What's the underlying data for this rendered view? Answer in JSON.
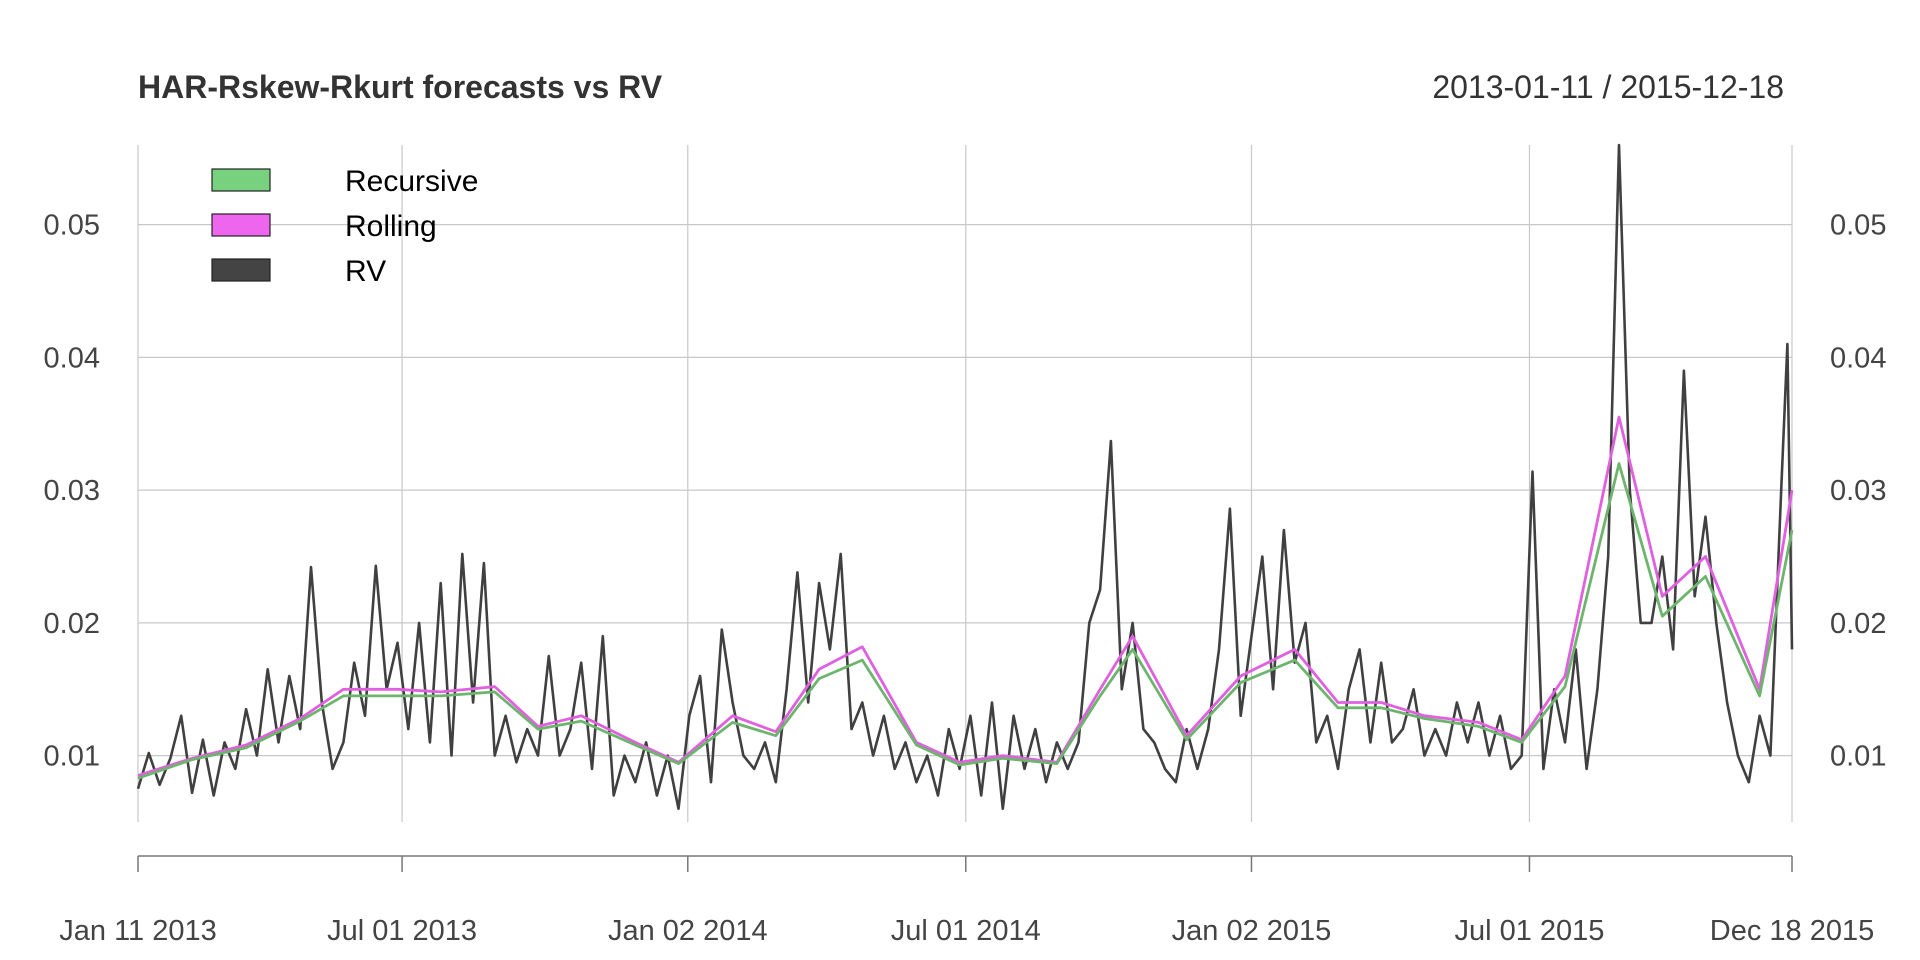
{
  "chart_data": {
    "type": "line",
    "title": "HAR-Rskew-Rkurt forecasts vs RV",
    "date_range": "2013-01-11 / 2015-12-18",
    "x_range": [
      "2013-01-11",
      "2015-12-18"
    ],
    "ylim": [
      0.005,
      0.056
    ],
    "y_ticks": [
      0.01,
      0.02,
      0.03,
      0.04,
      0.05
    ],
    "y_tick_labels": [
      "0.01",
      "0.02",
      "0.03",
      "0.04",
      "0.05"
    ],
    "x_ticks": [
      {
        "date": "2013-01-11",
        "label": "Jan 11 2013"
      },
      {
        "date": "2013-07-01",
        "label": "Jul 01 2013"
      },
      {
        "date": "2014-01-02",
        "label": "Jan 02 2014"
      },
      {
        "date": "2014-07-01",
        "label": "Jul 01 2014"
      },
      {
        "date": "2015-01-02",
        "label": "Jan 02 2015"
      },
      {
        "date": "2015-07-01",
        "label": "Jul 01 2015"
      },
      {
        "date": "2015-12-18",
        "label": "Dec 18 2015"
      }
    ],
    "grid": true,
    "legend": {
      "position": "top-left",
      "entries": [
        {
          "name": "Recursive",
          "color": "#77d17f"
        },
        {
          "name": "Rolling",
          "color": "#ee66ee"
        },
        {
          "name": "RV",
          "color": "#444444"
        }
      ]
    },
    "series": [
      {
        "name": "RV",
        "color": "#404040",
        "points": [
          [
            "2013-01-11",
            0.0075
          ],
          [
            "2013-01-18",
            0.0102
          ],
          [
            "2013-01-25",
            0.0078
          ],
          [
            "2013-02-01",
            0.0098
          ],
          [
            "2013-02-08",
            0.013
          ],
          [
            "2013-02-15",
            0.0072
          ],
          [
            "2013-02-22",
            0.0112
          ],
          [
            "2013-03-01",
            0.007
          ],
          [
            "2013-03-08",
            0.011
          ],
          [
            "2013-03-15",
            0.009
          ],
          [
            "2013-03-22",
            0.0135
          ],
          [
            "2013-03-29",
            0.01
          ],
          [
            "2013-04-05",
            0.0165
          ],
          [
            "2013-04-12",
            0.011
          ],
          [
            "2013-04-19",
            0.016
          ],
          [
            "2013-04-26",
            0.012
          ],
          [
            "2013-05-03",
            0.0242
          ],
          [
            "2013-05-10",
            0.014
          ],
          [
            "2013-05-17",
            0.009
          ],
          [
            "2013-05-24",
            0.011
          ],
          [
            "2013-05-31",
            0.017
          ],
          [
            "2013-06-07",
            0.013
          ],
          [
            "2013-06-14",
            0.0243
          ],
          [
            "2013-06-21",
            0.015
          ],
          [
            "2013-06-28",
            0.0185
          ],
          [
            "2013-07-05",
            0.012
          ],
          [
            "2013-07-12",
            0.02
          ],
          [
            "2013-07-19",
            0.011
          ],
          [
            "2013-07-26",
            0.023
          ],
          [
            "2013-08-02",
            0.01
          ],
          [
            "2013-08-09",
            0.0252
          ],
          [
            "2013-08-16",
            0.014
          ],
          [
            "2013-08-23",
            0.0245
          ],
          [
            "2013-08-30",
            0.01
          ],
          [
            "2013-09-06",
            0.013
          ],
          [
            "2013-09-13",
            0.0095
          ],
          [
            "2013-09-20",
            0.012
          ],
          [
            "2013-09-27",
            0.01
          ],
          [
            "2013-10-04",
            0.0175
          ],
          [
            "2013-10-11",
            0.01
          ],
          [
            "2013-10-18",
            0.012
          ],
          [
            "2013-10-25",
            0.017
          ],
          [
            "2013-11-01",
            0.009
          ],
          [
            "2013-11-08",
            0.019
          ],
          [
            "2013-11-15",
            0.007
          ],
          [
            "2013-11-22",
            0.01
          ],
          [
            "2013-11-29",
            0.008
          ],
          [
            "2013-12-06",
            0.011
          ],
          [
            "2013-12-13",
            0.007
          ],
          [
            "2013-12-20",
            0.01
          ],
          [
            "2013-12-27",
            0.006
          ],
          [
            "2014-01-03",
            0.013
          ],
          [
            "2014-01-10",
            0.016
          ],
          [
            "2014-01-17",
            0.008
          ],
          [
            "2014-01-24",
            0.0195
          ],
          [
            "2014-01-31",
            0.014
          ],
          [
            "2014-02-07",
            0.01
          ],
          [
            "2014-02-14",
            0.009
          ],
          [
            "2014-02-21",
            0.011
          ],
          [
            "2014-02-28",
            0.008
          ],
          [
            "2014-03-07",
            0.015
          ],
          [
            "2014-03-14",
            0.0238
          ],
          [
            "2014-03-21",
            0.014
          ],
          [
            "2014-03-28",
            0.023
          ],
          [
            "2014-04-04",
            0.018
          ],
          [
            "2014-04-11",
            0.0252
          ],
          [
            "2014-04-18",
            0.012
          ],
          [
            "2014-04-25",
            0.014
          ],
          [
            "2014-05-02",
            0.01
          ],
          [
            "2014-05-09",
            0.013
          ],
          [
            "2014-05-16",
            0.009
          ],
          [
            "2014-05-23",
            0.011
          ],
          [
            "2014-05-30",
            0.008
          ],
          [
            "2014-06-06",
            0.01
          ],
          [
            "2014-06-13",
            0.007
          ],
          [
            "2014-06-20",
            0.012
          ],
          [
            "2014-06-27",
            0.009
          ],
          [
            "2014-07-04",
            0.013
          ],
          [
            "2014-07-11",
            0.007
          ],
          [
            "2014-07-18",
            0.014
          ],
          [
            "2014-07-25",
            0.006
          ],
          [
            "2014-08-01",
            0.013
          ],
          [
            "2014-08-08",
            0.009
          ],
          [
            "2014-08-15",
            0.012
          ],
          [
            "2014-08-22",
            0.008
          ],
          [
            "2014-08-29",
            0.011
          ],
          [
            "2014-09-05",
            0.009
          ],
          [
            "2014-09-12",
            0.011
          ],
          [
            "2014-09-19",
            0.02
          ],
          [
            "2014-09-26",
            0.0225
          ],
          [
            "2014-10-03",
            0.0337
          ],
          [
            "2014-10-10",
            0.015
          ],
          [
            "2014-10-17",
            0.02
          ],
          [
            "2014-10-24",
            0.012
          ],
          [
            "2014-10-31",
            0.011
          ],
          [
            "2014-11-07",
            0.009
          ],
          [
            "2014-11-14",
            0.008
          ],
          [
            "2014-11-21",
            0.012
          ],
          [
            "2014-11-28",
            0.009
          ],
          [
            "2014-12-05",
            0.012
          ],
          [
            "2014-12-12",
            0.018
          ],
          [
            "2014-12-19",
            0.0286
          ],
          [
            "2014-12-26",
            0.013
          ],
          [
            "2015-01-02",
            0.019
          ],
          [
            "2015-01-09",
            0.025
          ],
          [
            "2015-01-16",
            0.015
          ],
          [
            "2015-01-23",
            0.027
          ],
          [
            "2015-01-30",
            0.017
          ],
          [
            "2015-02-06",
            0.02
          ],
          [
            "2015-02-13",
            0.011
          ],
          [
            "2015-02-20",
            0.013
          ],
          [
            "2015-02-27",
            0.009
          ],
          [
            "2015-03-06",
            0.015
          ],
          [
            "2015-03-13",
            0.018
          ],
          [
            "2015-03-20",
            0.011
          ],
          [
            "2015-03-27",
            0.017
          ],
          [
            "2015-04-03",
            0.011
          ],
          [
            "2015-04-10",
            0.012
          ],
          [
            "2015-04-17",
            0.015
          ],
          [
            "2015-04-24",
            0.01
          ],
          [
            "2015-05-01",
            0.012
          ],
          [
            "2015-05-08",
            0.01
          ],
          [
            "2015-05-15",
            0.014
          ],
          [
            "2015-05-22",
            0.011
          ],
          [
            "2015-05-29",
            0.014
          ],
          [
            "2015-06-05",
            0.01
          ],
          [
            "2015-06-12",
            0.013
          ],
          [
            "2015-06-19",
            0.009
          ],
          [
            "2015-06-26",
            0.01
          ],
          [
            "2015-07-03",
            0.0314
          ],
          [
            "2015-07-10",
            0.009
          ],
          [
            "2015-07-17",
            0.015
          ],
          [
            "2015-07-24",
            0.011
          ],
          [
            "2015-07-31",
            0.018
          ],
          [
            "2015-08-07",
            0.009
          ],
          [
            "2015-08-14",
            0.015
          ],
          [
            "2015-08-21",
            0.025
          ],
          [
            "2015-08-28",
            0.056
          ],
          [
            "2015-09-04",
            0.03
          ],
          [
            "2015-09-11",
            0.02
          ],
          [
            "2015-09-18",
            0.02
          ],
          [
            "2015-09-25",
            0.025
          ],
          [
            "2015-10-02",
            0.018
          ],
          [
            "2015-10-09",
            0.039
          ],
          [
            "2015-10-16",
            0.022
          ],
          [
            "2015-10-23",
            0.028
          ],
          [
            "2015-10-30",
            0.02
          ],
          [
            "2015-11-06",
            0.014
          ],
          [
            "2015-11-13",
            0.01
          ],
          [
            "2015-11-20",
            0.008
          ],
          [
            "2015-11-27",
            0.013
          ],
          [
            "2015-12-04",
            0.01
          ],
          [
            "2015-12-11",
            0.03
          ],
          [
            "2015-12-15",
            0.041
          ],
          [
            "2015-12-18",
            0.018
          ]
        ]
      },
      {
        "name": "Rolling",
        "color": "#e060e0",
        "points": [
          [
            "2013-01-11",
            0.0085
          ],
          [
            "2013-02-15",
            0.0098
          ],
          [
            "2013-03-22",
            0.0108
          ],
          [
            "2013-04-26",
            0.0128
          ],
          [
            "2013-05-24",
            0.015
          ],
          [
            "2013-06-28",
            0.015
          ],
          [
            "2013-07-26",
            0.0148
          ],
          [
            "2013-08-30",
            0.0152
          ],
          [
            "2013-09-27",
            0.0122
          ],
          [
            "2013-10-25",
            0.013
          ],
          [
            "2013-11-29",
            0.011
          ],
          [
            "2013-12-27",
            0.0095
          ],
          [
            "2014-01-31",
            0.013
          ],
          [
            "2014-02-28",
            0.0118
          ],
          [
            "2014-03-28",
            0.0165
          ],
          [
            "2014-04-25",
            0.0182
          ],
          [
            "2014-05-30",
            0.011
          ],
          [
            "2014-06-27",
            0.0095
          ],
          [
            "2014-07-25",
            0.01
          ],
          [
            "2014-08-29",
            0.0095
          ],
          [
            "2014-09-26",
            0.015
          ],
          [
            "2014-10-17",
            0.019
          ],
          [
            "2014-11-21",
            0.0115
          ],
          [
            "2014-12-26",
            0.016
          ],
          [
            "2015-01-30",
            0.018
          ],
          [
            "2015-02-27",
            0.014
          ],
          [
            "2015-03-27",
            0.014
          ],
          [
            "2015-04-24",
            0.013
          ],
          [
            "2015-05-29",
            0.0125
          ],
          [
            "2015-06-26",
            0.0112
          ],
          [
            "2015-07-24",
            0.016
          ],
          [
            "2015-08-28",
            0.0355
          ],
          [
            "2015-09-25",
            0.022
          ],
          [
            "2015-10-23",
            0.025
          ],
          [
            "2015-11-27",
            0.015
          ],
          [
            "2015-12-18",
            0.03
          ]
        ]
      },
      {
        "name": "Recursive",
        "color": "#6db56d",
        "points": [
          [
            "2013-01-11",
            0.0083
          ],
          [
            "2013-02-15",
            0.0097
          ],
          [
            "2013-03-22",
            0.0106
          ],
          [
            "2013-04-26",
            0.0126
          ],
          [
            "2013-05-24",
            0.0145
          ],
          [
            "2013-06-28",
            0.0145
          ],
          [
            "2013-07-26",
            0.0145
          ],
          [
            "2013-08-30",
            0.0148
          ],
          [
            "2013-09-27",
            0.012
          ],
          [
            "2013-10-25",
            0.0126
          ],
          [
            "2013-11-29",
            0.0108
          ],
          [
            "2013-12-27",
            0.0094
          ],
          [
            "2014-01-31",
            0.0125
          ],
          [
            "2014-02-28",
            0.0115
          ],
          [
            "2014-03-28",
            0.0158
          ],
          [
            "2014-04-25",
            0.0172
          ],
          [
            "2014-05-30",
            0.0108
          ],
          [
            "2014-06-27",
            0.0093
          ],
          [
            "2014-07-25",
            0.0098
          ],
          [
            "2014-08-29",
            0.0094
          ],
          [
            "2014-09-26",
            0.0145
          ],
          [
            "2014-10-17",
            0.018
          ],
          [
            "2014-11-21",
            0.0112
          ],
          [
            "2014-12-26",
            0.0155
          ],
          [
            "2015-01-30",
            0.0172
          ],
          [
            "2015-02-27",
            0.0136
          ],
          [
            "2015-03-27",
            0.0136
          ],
          [
            "2015-04-24",
            0.0128
          ],
          [
            "2015-05-29",
            0.0122
          ],
          [
            "2015-06-26",
            0.011
          ],
          [
            "2015-07-24",
            0.0152
          ],
          [
            "2015-08-28",
            0.032
          ],
          [
            "2015-09-25",
            0.0205
          ],
          [
            "2015-10-23",
            0.0235
          ],
          [
            "2015-11-27",
            0.0145
          ],
          [
            "2015-12-18",
            0.027
          ]
        ]
      }
    ]
  }
}
